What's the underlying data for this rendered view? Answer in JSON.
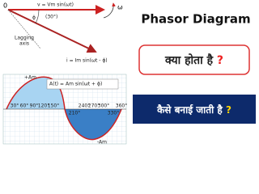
{
  "diagram": {
    "origin": "0",
    "voltage": "v = Vm sin(ωt)",
    "omega": "ω",
    "phi": "ϕ",
    "angle": "(30°)",
    "lagging": [
      "Lagging",
      "axis"
    ],
    "current": "i = Im sin(ωt - ϕ)",
    "amp_pos": "+Am",
    "amp_neg": "-Am",
    "wave_eq": "A(t) = Am sin(ωt + ϕ)",
    "angles_top": [
      "30°",
      "60°",
      "90°",
      "120°",
      "150°",
      "240°",
      "270°",
      "300°",
      "360°"
    ],
    "angles_bottom": [
      "210°",
      "330°"
    ]
  },
  "heading": {
    "title": "Phasor Diagram",
    "question1": {
      "text": "क्या होता है",
      "mark": "?"
    },
    "question2": {
      "text": "कैसे बनाई जाती है",
      "mark": "?"
    }
  }
}
